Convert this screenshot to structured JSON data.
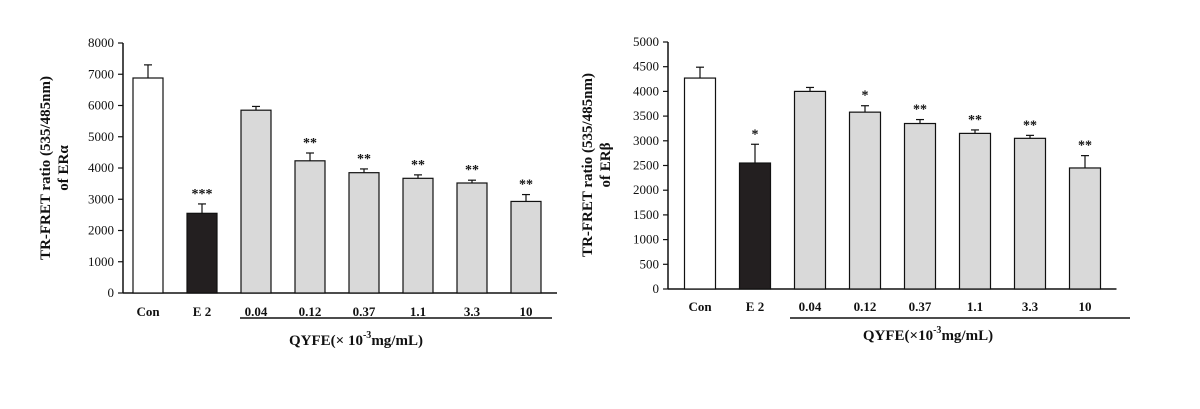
{
  "chart_data": [
    {
      "type": "bar",
      "ylabel_line1": "TR-FRET  ratio  (535/485nm)",
      "ylabel_line2": "of ERα",
      "group_label": "QYFE(× 10",
      "group_label_exp": "-3",
      "group_label_unit": "mg/mL)",
      "categories": [
        "Con",
        "E 2",
        "0.04",
        "0.12",
        "0.37",
        "1.1",
        "3.3",
        "10"
      ],
      "values": [
        6880,
        2550,
        5850,
        4230,
        3850,
        3670,
        3520,
        2930
      ],
      "errors": [
        420,
        300,
        120,
        250,
        120,
        110,
        90,
        220
      ],
      "significance": [
        "",
        "***",
        "",
        "**",
        "**",
        "**",
        "**",
        "**"
      ],
      "fills": [
        "#ffffff",
        "#231f20",
        "#d9d9d9",
        "#d9d9d9",
        "#d9d9d9",
        "#d9d9d9",
        "#d9d9d9",
        "#d9d9d9"
      ],
      "ylim": [
        0,
        8000
      ],
      "yticks": [
        0,
        1000,
        2000,
        3000,
        4000,
        5000,
        6000,
        7000,
        8000
      ]
    },
    {
      "type": "bar",
      "ylabel_line1": "TR-FRET  ratio  (535/485nm)",
      "ylabel_line2": "of ERβ",
      "group_label": "QYFE(×10",
      "group_label_exp": "-3",
      "group_label_unit": "mg/mL)",
      "categories": [
        "Con",
        "E 2",
        "0.04",
        "0.12",
        "0.37",
        "1.1",
        "3.3",
        "10"
      ],
      "values": [
        4270,
        2550,
        4000,
        3580,
        3350,
        3150,
        3050,
        2450
      ],
      "errors": [
        220,
        380,
        80,
        130,
        80,
        70,
        60,
        250
      ],
      "significance": [
        "",
        "*",
        "",
        "*",
        "**",
        "**",
        "**",
        "**"
      ],
      "fills": [
        "#ffffff",
        "#231f20",
        "#d9d9d9",
        "#d9d9d9",
        "#d9d9d9",
        "#d9d9d9",
        "#d9d9d9",
        "#d9d9d9"
      ],
      "ylim": [
        0,
        5000
      ],
      "yticks": [
        0,
        500,
        1000,
        1500,
        2000,
        2500,
        3000,
        3500,
        4000,
        4500,
        5000
      ]
    }
  ]
}
